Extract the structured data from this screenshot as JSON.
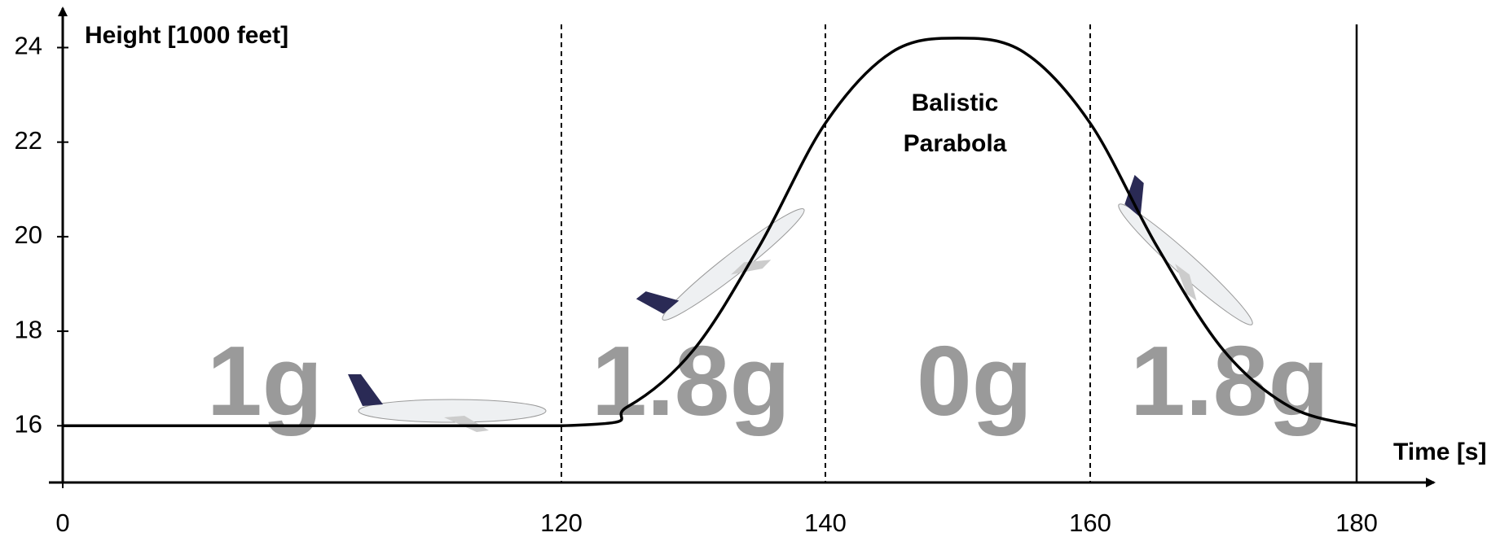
{
  "chart_data": {
    "type": "line",
    "y_label": "Height [1000 feet]",
    "x_label": "Time [s]",
    "annotation": [
      "Balistic",
      "Parabola"
    ],
    "phases": [
      "1g",
      "1.8g",
      "0g",
      "1.8g"
    ],
    "x": [
      0,
      120,
      125,
      130,
      135,
      140,
      145,
      150,
      155,
      160,
      165,
      170,
      175,
      180
    ],
    "series": [
      {
        "color": "#000000",
        "values": [
          16,
          16,
          16.4,
          17.6,
          19.8,
          22.4,
          23.9,
          24.2,
          23.9,
          22.4,
          19.8,
          17.6,
          16.4,
          16
        ]
      }
    ],
    "xlim": [
      0,
      180
    ],
    "xticks": [
      0,
      120,
      140,
      160,
      180
    ],
    "ylim": [
      14.8,
      24.8
    ],
    "yticks": [
      16,
      18,
      20,
      22,
      24
    ],
    "grid": false
  }
}
